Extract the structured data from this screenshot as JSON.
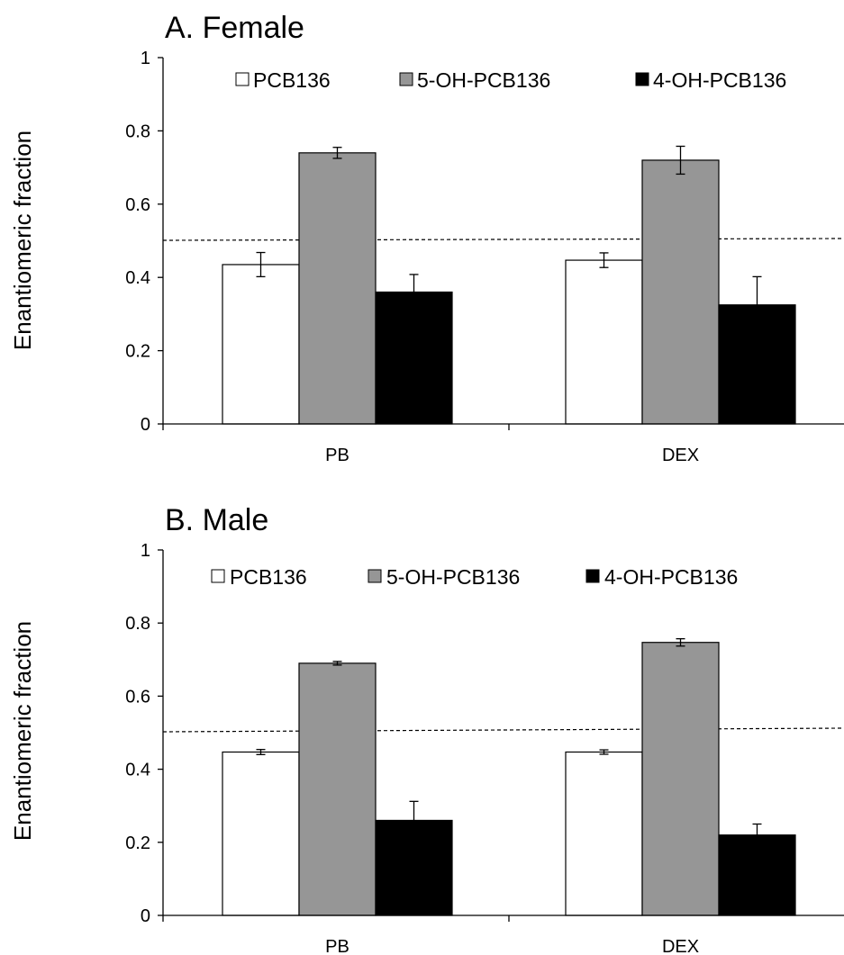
{
  "chart_data": [
    {
      "type": "bar",
      "title": "A. Female",
      "ylabel": "Enantiomeric fraction",
      "xlabel": "",
      "ylim": [
        0,
        1
      ],
      "yticks": [
        "0",
        "0.2",
        "0.4",
        "0.6",
        "0.8",
        "1"
      ],
      "categories": [
        "PB",
        "DEX"
      ],
      "reference_line": 0.5,
      "legend_position": "top",
      "series": [
        {
          "name": "PCB136",
          "color": "#ffffff",
          "values": [
            0.435,
            0.447
          ],
          "errors": [
            0.033,
            0.02
          ]
        },
        {
          "name": "5-OH-PCB136",
          "color": "#969696",
          "values": [
            0.74,
            0.72
          ],
          "errors": [
            0.015,
            0.038
          ]
        },
        {
          "name": "4-OH-PCB136",
          "color": "#000000",
          "values": [
            0.36,
            0.325
          ],
          "errors": [
            0.048,
            0.077
          ]
        }
      ]
    },
    {
      "type": "bar",
      "title": "B. Male",
      "ylabel": "Enantiomeric fraction",
      "xlabel": "",
      "ylim": [
        0,
        1
      ],
      "yticks": [
        "0",
        "0.2",
        "0.4",
        "0.6",
        "0.8",
        "1"
      ],
      "categories": [
        "PB",
        "DEX"
      ],
      "reference_line": 0.5,
      "legend_position": "top",
      "series": [
        {
          "name": "PCB136",
          "color": "#ffffff",
          "values": [
            0.447,
            0.447
          ],
          "errors": [
            0.007,
            0.006
          ]
        },
        {
          "name": "5-OH-PCB136",
          "color": "#969696",
          "values": [
            0.69,
            0.747
          ],
          "errors": [
            0.005,
            0.01
          ]
        },
        {
          "name": "4-OH-PCB136",
          "color": "#000000",
          "values": [
            0.26,
            0.22
          ],
          "errors": [
            0.052,
            0.03
          ]
        }
      ]
    }
  ]
}
